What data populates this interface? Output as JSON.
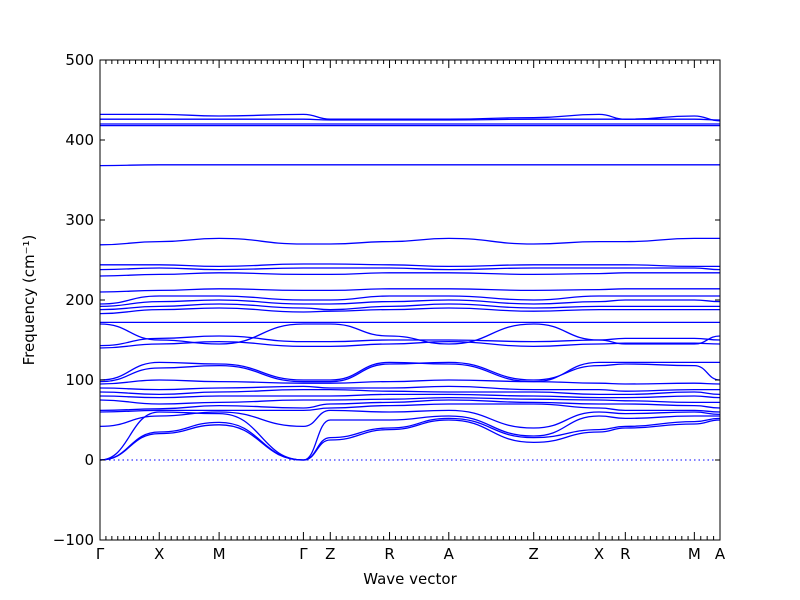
{
  "chart_data": {
    "type": "line",
    "title": "",
    "xlabel": "Wave vector",
    "ylabel": "Frequency (cm⁻¹)",
    "ylim": [
      -100,
      500
    ],
    "y_ticks": [
      -100,
      0,
      100,
      200,
      300,
      400,
      500
    ],
    "x_range": [
      0,
      10.15
    ],
    "high_symmetry_points": [
      {
        "label": "Γ",
        "x": 0.0
      },
      {
        "label": "X",
        "x": 0.97
      },
      {
        "label": "M",
        "x": 1.95
      },
      {
        "label": "Γ",
        "x": 3.33
      },
      {
        "label": "Z",
        "x": 3.77
      },
      {
        "label": "R",
        "x": 4.74
      },
      {
        "label": "A",
        "x": 5.71
      },
      {
        "label": "Z",
        "x": 7.1
      },
      {
        "label": "X",
        "x": 8.17
      },
      {
        "label": "R",
        "x": 8.6
      },
      {
        "label": "M",
        "x": 9.73
      },
      {
        "label": "A",
        "x": 10.15
      }
    ],
    "zero_line": {
      "y": 0,
      "style": "dotted"
    },
    "line_color": "#0000ff",
    "grid": false,
    "series": [
      {
        "x": [
          0,
          0.97,
          1.95,
          3.33,
          3.77,
          4.74,
          5.71,
          7.1,
          8.17,
          8.6,
          9.73,
          10.15
        ],
        "y": [
          0,
          33,
          44,
          0,
          25,
          38,
          50,
          22,
          35,
          40,
          45,
          50
        ]
      },
      {
        "x": [
          0,
          0.97,
          1.95,
          3.33,
          3.77,
          4.74,
          5.71,
          7.1,
          8.17,
          8.6,
          9.73,
          10.15
        ],
        "y": [
          0,
          35,
          47,
          0,
          28,
          40,
          52,
          28,
          38,
          42,
          48,
          52
        ]
      },
      {
        "x": [
          0,
          0.97,
          1.95,
          3.33,
          3.77,
          4.74,
          5.71,
          7.1,
          8.17,
          8.6,
          9.73,
          10.15
        ],
        "y": [
          0,
          60,
          58,
          0,
          50,
          50,
          55,
          30,
          55,
          52,
          55,
          55
        ]
      },
      {
        "x": [
          0,
          0.97,
          1.95,
          3.33,
          3.77,
          4.74,
          5.71,
          7.1,
          8.17,
          8.6,
          9.73,
          10.15
        ],
        "y": [
          42,
          55,
          60,
          42,
          62,
          60,
          62,
          40,
          60,
          58,
          60,
          57
        ]
      },
      {
        "x": [
          0,
          0.97,
          1.95,
          3.33,
          3.77,
          4.74,
          5.71,
          7.1,
          8.17,
          8.6,
          9.73,
          10.15
        ],
        "y": [
          60,
          62,
          62,
          62,
          65,
          68,
          70,
          70,
          65,
          62,
          62,
          60
        ]
      },
      {
        "x": [
          0,
          0.97,
          1.95,
          3.33,
          3.77,
          4.74,
          5.71,
          7.1,
          8.17,
          8.6,
          9.73,
          10.15
        ],
        "y": [
          62,
          64,
          68,
          65,
          70,
          72,
          75,
          72,
          70,
          70,
          68,
          65
        ]
      },
      {
        "x": [
          0,
          0.97,
          1.95,
          3.33,
          3.77,
          4.74,
          5.71,
          7.1,
          8.17,
          8.6,
          9.73,
          10.15
        ],
        "y": [
          75,
          70,
          72,
          75,
          75,
          76,
          78,
          76,
          75,
          74,
          72,
          72
        ]
      },
      {
        "x": [
          0,
          0.97,
          1.95,
          3.33,
          3.77,
          4.74,
          5.71,
          7.1,
          8.17,
          8.6,
          9.73,
          10.15
        ],
        "y": [
          80,
          78,
          80,
          80,
          80,
          82,
          82,
          80,
          78,
          78,
          80,
          78
        ]
      },
      {
        "x": [
          0,
          0.97,
          1.95,
          3.33,
          3.77,
          4.74,
          5.71,
          7.1,
          8.17,
          8.6,
          9.73,
          10.15
        ],
        "y": [
          85,
          82,
          85,
          88,
          88,
          86,
          85,
          85,
          82,
          82,
          85,
          82
        ]
      },
      {
        "x": [
          0,
          0.97,
          1.95,
          3.33,
          3.77,
          4.74,
          5.71,
          7.1,
          8.17,
          8.6,
          9.73,
          10.15
        ],
        "y": [
          90,
          88,
          90,
          92,
          90,
          90,
          92,
          88,
          88,
          86,
          88,
          88
        ]
      },
      {
        "x": [
          0,
          0.97,
          1.95,
          3.33,
          3.77,
          4.74,
          5.71,
          7.1,
          8.17,
          8.6,
          9.73,
          10.15
        ],
        "y": [
          95,
          100,
          98,
          96,
          96,
          98,
          100,
          98,
          96,
          95,
          96,
          95
        ]
      },
      {
        "x": [
          0,
          0.97,
          1.95,
          3.33,
          3.77,
          4.74,
          5.71,
          7.1,
          8.17,
          8.6,
          9.73,
          10.15
        ],
        "y": [
          98,
          115,
          118,
          98,
          98,
          120,
          122,
          100,
          118,
          120,
          118,
          100
        ]
      },
      {
        "x": [
          0,
          0.97,
          1.95,
          3.33,
          3.77,
          4.74,
          5.71,
          7.1,
          8.17,
          8.6,
          9.73,
          10.15
        ],
        "y": [
          100,
          122,
          120,
          100,
          100,
          122,
          120,
          98,
          122,
          122,
          122,
          122
        ]
      },
      {
        "x": [
          0,
          0.97,
          1.95,
          3.33,
          3.77,
          4.74,
          5.71,
          7.1,
          8.17,
          8.6,
          9.73,
          10.15
        ],
        "y": [
          140,
          145,
          148,
          142,
          142,
          145,
          148,
          142,
          145,
          146,
          146,
          145
        ]
      },
      {
        "x": [
          0,
          0.97,
          1.95,
          3.33,
          3.77,
          4.74,
          5.71,
          7.1,
          8.17,
          8.6,
          9.73,
          10.15
        ],
        "y": [
          143,
          152,
          155,
          148,
          148,
          150,
          150,
          148,
          150,
          152,
          152,
          150
        ]
      },
      {
        "x": [
          0,
          0.97,
          1.95,
          3.33,
          3.77,
          4.74,
          5.71,
          7.1,
          8.17,
          8.6,
          9.73,
          10.15
        ],
        "y": [
          170,
          150,
          145,
          170,
          170,
          155,
          145,
          170,
          150,
          145,
          145,
          155
        ]
      },
      {
        "x": [
          0,
          0.97,
          1.95,
          3.33,
          3.77,
          4.74,
          5.71,
          7.1,
          8.17,
          8.6,
          9.73,
          10.15
        ],
        "y": [
          172,
          172,
          172,
          172,
          172,
          172,
          172,
          172,
          172,
          172,
          172,
          172
        ]
      },
      {
        "x": [
          0,
          0.97,
          1.95,
          3.33,
          3.77,
          4.74,
          5.71,
          7.1,
          8.17,
          8.6,
          9.73,
          10.15
        ],
        "y": [
          183,
          188,
          190,
          185,
          186,
          188,
          190,
          186,
          188,
          188,
          188,
          188
        ]
      },
      {
        "x": [
          0,
          0.97,
          1.95,
          3.33,
          3.77,
          4.74,
          5.71,
          7.1,
          8.17,
          8.6,
          9.73,
          10.15
        ],
        "y": [
          188,
          192,
          195,
          190,
          188,
          192,
          195,
          190,
          192,
          192,
          192,
          192
        ]
      },
      {
        "x": [
          0,
          0.97,
          1.95,
          3.33,
          3.77,
          4.74,
          5.71,
          7.1,
          8.17,
          8.6,
          9.73,
          10.15
        ],
        "y": [
          192,
          198,
          200,
          195,
          195,
          198,
          200,
          195,
          198,
          200,
          200,
          198
        ]
      },
      {
        "x": [
          0,
          0.97,
          1.95,
          3.33,
          3.77,
          4.74,
          5.71,
          7.1,
          8.17,
          8.6,
          9.73,
          10.15
        ],
        "y": [
          195,
          205,
          205,
          200,
          200,
          205,
          205,
          200,
          205,
          205,
          205,
          205
        ]
      },
      {
        "x": [
          0,
          0.97,
          1.95,
          3.33,
          3.77,
          4.74,
          5.71,
          7.1,
          8.17,
          8.6,
          9.73,
          10.15
        ],
        "y": [
          210,
          212,
          214,
          212,
          212,
          214,
          214,
          212,
          213,
          214,
          214,
          214
        ]
      },
      {
        "x": [
          0,
          0.97,
          1.95,
          3.33,
          3.77,
          4.74,
          5.71,
          7.1,
          8.17,
          8.6,
          9.73,
          10.15
        ],
        "y": [
          230,
          232,
          234,
          232,
          232,
          234,
          234,
          232,
          233,
          234,
          234,
          234
        ]
      },
      {
        "x": [
          0,
          0.97,
          1.95,
          3.33,
          3.77,
          4.74,
          5.71,
          7.1,
          8.17,
          8.6,
          9.73,
          10.15
        ],
        "y": [
          238,
          240,
          238,
          240,
          240,
          240,
          238,
          240,
          240,
          240,
          240,
          238
        ]
      },
      {
        "x": [
          0,
          0.97,
          1.95,
          3.33,
          3.77,
          4.74,
          5.71,
          7.1,
          8.17,
          8.6,
          9.73,
          10.15
        ],
        "y": [
          244,
          244,
          242,
          245,
          245,
          244,
          242,
          244,
          244,
          244,
          242,
          242
        ]
      },
      {
        "x": [
          0,
          0.97,
          1.95,
          3.33,
          3.77,
          4.74,
          5.71,
          7.1,
          8.17,
          8.6,
          9.73,
          10.15
        ],
        "y": [
          269,
          273,
          277,
          270,
          270,
          273,
          277,
          270,
          273,
          273,
          277,
          277
        ]
      },
      {
        "x": [
          0,
          0.97,
          1.95,
          3.33,
          3.77,
          4.74,
          5.71,
          7.1,
          8.17,
          8.6,
          9.73,
          10.15
        ],
        "y": [
          368,
          369,
          369,
          369,
          369,
          369,
          369,
          369,
          369,
          369,
          369,
          369
        ]
      },
      {
        "x": [
          0,
          0.97,
          1.95,
          3.33,
          3.77,
          4.74,
          5.71,
          7.1,
          8.17,
          8.6,
          9.73,
          10.15
        ],
        "y": [
          418,
          418,
          418,
          418,
          418,
          418,
          418,
          418,
          418,
          418,
          418,
          418
        ]
      },
      {
        "x": [
          0,
          0.97,
          1.95,
          3.33,
          3.77,
          4.74,
          5.71,
          7.1,
          8.17,
          8.6,
          9.73,
          10.15
        ],
        "y": [
          420,
          420,
          420,
          420,
          420,
          420,
          420,
          420,
          420,
          420,
          420,
          420
        ]
      },
      {
        "x": [
          0,
          0.97,
          1.95,
          3.33,
          3.77,
          4.74,
          5.71,
          7.1,
          8.17,
          8.6,
          9.73,
          10.15
        ],
        "y": [
          426,
          426,
          426,
          426,
          425,
          425,
          425,
          426,
          426,
          426,
          426,
          425
        ]
      },
      {
        "x": [
          0,
          0.97,
          1.95,
          3.33,
          3.77,
          4.74,
          5.71,
          7.1,
          8.17,
          8.6,
          9.73,
          10.15
        ],
        "y": [
          432,
          432,
          430,
          432,
          426,
          426,
          426,
          428,
          432,
          426,
          430,
          424
        ]
      }
    ]
  }
}
